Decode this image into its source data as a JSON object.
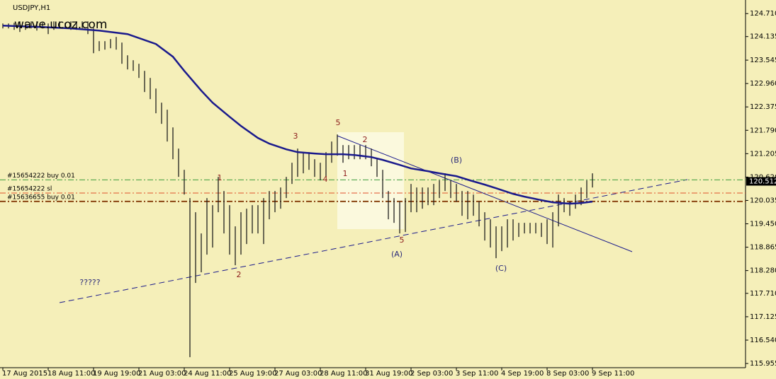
{
  "chart_data": {
    "type": "ohlc-bars",
    "title": "USDJPY,H1",
    "watermark": "wave.ucoz.com",
    "bar_color": "#1e1e1e",
    "background": "#f5efb9",
    "ylim": [
      115.85,
      125.05
    ],
    "yticks": [
      {
        "value": 124.71,
        "label": "124.710"
      },
      124.135,
      123.545,
      {
        "value": 122.96,
        "label": "122.960"
      },
      122.375,
      {
        "value": 121.79,
        "label": "121.790"
      },
      121.205,
      {
        "value": 120.62,
        "label": "120.620"
      },
      120.035,
      {
        "value": 119.45,
        "label": "119.450"
      },
      118.865,
      {
        "value": 118.28,
        "label": "118.280"
      },
      {
        "value": 117.71,
        "label": "117.710"
      },
      117.125,
      {
        "value": 116.54,
        "label": "116.540"
      },
      115.955
    ],
    "x_labels": [
      "17 Aug 2015",
      "18 Aug 11:00",
      "19 Aug 19:00",
      "21 Aug 03:00",
      "24 Aug 11:00",
      "25 Aug 19:00",
      "27 Aug 03:00",
      "28 Aug 11:00",
      "31 Aug 19:00",
      "2 Sep 03:00",
      "3 Sep 11:00",
      "4 Sep 19:00",
      "8 Sep 03:00",
      "9 Sep 11:00"
    ],
    "high": [
      124.462,
      124.462,
      124.48,
      124.515,
      124.48,
      124.515,
      124.515,
      124.48,
      124.462,
      124.515,
      124.515,
      124.48,
      124.515,
      124.515,
      124.515,
      124.515,
      124.339,
      124.02,
      124.02,
      124.073,
      124.126,
      123.985,
      123.666,
      123.543,
      123.454,
      123.277,
      123.1,
      122.835,
      122.481,
      122.305,
      121.862,
      121.332,
      120.801,
      120.094,
      119.74,
      119.209,
      120.094,
      119.917,
      120.624,
      120.271,
      119.917,
      119.386,
      119.74,
      119.828,
      119.917,
      119.917,
      120.094,
      120.271,
      120.271,
      120.359,
      120.624,
      120.978,
      121.332,
      121.243,
      121.243,
      121.066,
      120.978,
      121.243,
      121.509,
      121.685,
      121.42,
      121.42,
      121.42,
      121.42,
      121.42,
      121.332,
      121.066,
      120.801,
      120.271,
      120.094,
      120.005,
      120.094,
      120.447,
      120.359,
      120.359,
      120.359,
      120.447,
      120.536,
      120.713,
      120.536,
      120.447,
      120.271,
      120.271,
      120.182,
      120.005,
      119.74,
      119.563,
      119.386,
      119.386,
      119.563,
      119.563,
      119.474,
      119.474,
      119.474,
      119.474,
      119.474,
      119.563,
      119.74,
      120.182,
      120.094,
      120.005,
      120.182,
      120.359,
      120.536,
      120.713
    ],
    "low": [
      124.339,
      124.339,
      124.303,
      124.25,
      124.303,
      124.339,
      124.285,
      124.339,
      124.197,
      124.303,
      124.339,
      124.339,
      124.303,
      124.303,
      124.339,
      124.197,
      123.719,
      123.773,
      123.808,
      123.843,
      123.808,
      123.454,
      123.313,
      123.277,
      123.1,
      122.747,
      122.57,
      122.216,
      121.951,
      121.509,
      121.066,
      120.624,
      120.182,
      116.114,
      117.971,
      118.237,
      118.679,
      118.856,
      119.74,
      119.209,
      118.679,
      118.413,
      118.679,
      118.944,
      119.209,
      119.209,
      118.944,
      119.563,
      119.74,
      119.828,
      120.094,
      120.447,
      120.624,
      120.713,
      120.801,
      120.624,
      120.536,
      120.624,
      120.978,
      121.155,
      120.978,
      121.066,
      121.066,
      121.066,
      121.066,
      120.89,
      120.624,
      120.094,
      119.563,
      119.474,
      119.209,
      119.245,
      119.74,
      119.74,
      119.828,
      119.917,
      119.917,
      120.094,
      120.271,
      120.094,
      120.005,
      119.651,
      119.563,
      119.651,
      119.386,
      119.032,
      118.856,
      118.59,
      118.767,
      118.856,
      119.032,
      119.121,
      119.209,
      119.209,
      119.209,
      119.121,
      118.944,
      118.856,
      119.386,
      119.74,
      119.651,
      119.828,
      119.917,
      120.094,
      120.359
    ],
    "ma": {
      "color": "#1a1a8c",
      "x": [
        0,
        7,
        12,
        17,
        22,
        27,
        30,
        32,
        35,
        37,
        40,
        42,
        45,
        47,
        50,
        52,
        55,
        57,
        60,
        62,
        65,
        67,
        70,
        72,
        75,
        77,
        80,
        82,
        85,
        87,
        90,
        92,
        95,
        97,
        100,
        102,
        104
      ],
      "values": [
        124.409,
        124.374,
        124.339,
        124.285,
        124.197,
        123.949,
        123.631,
        123.277,
        122.782,
        122.481,
        122.128,
        121.898,
        121.597,
        121.456,
        121.314,
        121.243,
        121.208,
        121.19,
        121.19,
        121.172,
        121.119,
        121.049,
        120.925,
        120.836,
        120.766,
        120.713,
        120.642,
        120.554,
        120.43,
        120.341,
        120.2,
        120.129,
        120.041,
        119.988,
        119.953,
        119.97,
        120.005
      ]
    },
    "levels": [
      {
        "label": "#15654222 buy 0.01",
        "value": 120.55,
        "color": "#3c9c3c"
      },
      {
        "label": "#15654222 sl",
        "value": 120.22,
        "color": "#e0502a"
      },
      {
        "label": "#15636655 buy 0.01",
        "value": 120.01,
        "color": "#8b4513"
      }
    ],
    "current_price": 120.512,
    "annotations": [
      {
        "text": "1",
        "color": "#8b1a1a"
      },
      {
        "text": "2",
        "color": "#8b1a1a"
      },
      {
        "text": "3",
        "color": "#8b1a1a"
      },
      {
        "text": "4",
        "color": "#8b1a1a"
      },
      {
        "text": "5",
        "color": "#8b1a1a"
      },
      {
        "text": "1",
        "color": "#8b1a1a"
      },
      {
        "text": "2",
        "color": "#8b1a1a"
      },
      {
        "text": "5",
        "color": "#8b1a1a"
      },
      {
        "text": "(A)",
        "color": "#2a2a7a"
      },
      {
        "text": "(B)",
        "color": "#2a2a7a"
      },
      {
        "text": "(C)",
        "color": "#2a2a7a"
      },
      {
        "text": "?????",
        "color": "#2a2a7a"
      }
    ]
  }
}
